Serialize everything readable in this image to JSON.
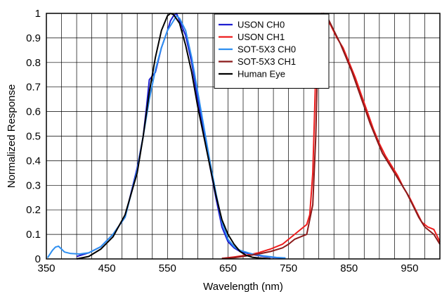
{
  "chart_data": {
    "type": "line",
    "xlabel": "Wavelength (nm)",
    "ylabel": "Normalized Response",
    "xlim": [
      350,
      1000
    ],
    "ylim": [
      0,
      1
    ],
    "x_ticks": [
      350,
      450,
      550,
      650,
      750,
      850,
      950
    ],
    "y_ticks": [
      0,
      0.1,
      0.2,
      0.3,
      0.4,
      0.5,
      0.6,
      0.7,
      0.8,
      0.9,
      1
    ],
    "grid": true,
    "legend_position": "top-center",
    "series": [
      {
        "name": "USON CH0",
        "color": "#1f1fd0",
        "points": [
          [
            400,
            0.01
          ],
          [
            420,
            0.025
          ],
          [
            440,
            0.05
          ],
          [
            460,
            0.1
          ],
          [
            480,
            0.17
          ],
          [
            500,
            0.37
          ],
          [
            510,
            0.5
          ],
          [
            515,
            0.61
          ],
          [
            520,
            0.73
          ],
          [
            530,
            0.76
          ],
          [
            540,
            0.86
          ],
          [
            550,
            0.93
          ],
          [
            555,
            0.97
          ],
          [
            560,
            0.99
          ],
          [
            565,
            1.0
          ],
          [
            570,
            0.97
          ],
          [
            580,
            0.91
          ],
          [
            590,
            0.8
          ],
          [
            600,
            0.65
          ],
          [
            610,
            0.52
          ],
          [
            620,
            0.38
          ],
          [
            630,
            0.25
          ],
          [
            640,
            0.13
          ],
          [
            650,
            0.07
          ],
          [
            660,
            0.045
          ],
          [
            670,
            0.03
          ],
          [
            690,
            0.018
          ],
          [
            710,
            0.01
          ],
          [
            730,
            0.005
          ],
          [
            745,
            0.003
          ]
        ]
      },
      {
        "name": "USON CH1",
        "color": "#ee1c1c",
        "points": [
          [
            640,
            0.002
          ],
          [
            660,
            0.008
          ],
          [
            680,
            0.015
          ],
          [
            700,
            0.025
          ],
          [
            720,
            0.04
          ],
          [
            740,
            0.06
          ],
          [
            750,
            0.08
          ],
          [
            760,
            0.1
          ],
          [
            770,
            0.12
          ],
          [
            780,
            0.14
          ],
          [
            785,
            0.18
          ],
          [
            790,
            0.35
          ],
          [
            793,
            0.6
          ],
          [
            796,
            0.85
          ],
          [
            800,
            0.99
          ],
          [
            805,
            1.0
          ],
          [
            810,
            0.99
          ],
          [
            820,
            0.95
          ],
          [
            830,
            0.9
          ],
          [
            840,
            0.86
          ],
          [
            850,
            0.8
          ],
          [
            860,
            0.74
          ],
          [
            870,
            0.67
          ],
          [
            880,
            0.6
          ],
          [
            890,
            0.53
          ],
          [
            900,
            0.47
          ],
          [
            910,
            0.42
          ],
          [
            920,
            0.38
          ],
          [
            930,
            0.34
          ],
          [
            940,
            0.29
          ],
          [
            950,
            0.25
          ],
          [
            960,
            0.2
          ],
          [
            970,
            0.15
          ],
          [
            980,
            0.13
          ],
          [
            990,
            0.12
          ],
          [
            1000,
            0.07
          ]
        ]
      },
      {
        "name": "SOT-5X3 CH0",
        "color": "#2e8ff0",
        "points": [
          [
            352,
            0.005
          ],
          [
            360,
            0.035
          ],
          [
            365,
            0.048
          ],
          [
            370,
            0.052
          ],
          [
            375,
            0.04
          ],
          [
            380,
            0.028
          ],
          [
            390,
            0.022
          ],
          [
            405,
            0.02
          ],
          [
            420,
            0.025
          ],
          [
            440,
            0.05
          ],
          [
            460,
            0.1
          ],
          [
            480,
            0.17
          ],
          [
            500,
            0.36
          ],
          [
            510,
            0.5
          ],
          [
            520,
            0.65
          ],
          [
            530,
            0.77
          ],
          [
            540,
            0.86
          ],
          [
            550,
            0.93
          ],
          [
            560,
            0.97
          ],
          [
            565,
            0.99
          ],
          [
            570,
            0.98
          ],
          [
            580,
            0.93
          ],
          [
            590,
            0.82
          ],
          [
            600,
            0.68
          ],
          [
            610,
            0.54
          ],
          [
            620,
            0.4
          ],
          [
            630,
            0.27
          ],
          [
            640,
            0.15
          ],
          [
            650,
            0.08
          ],
          [
            660,
            0.05
          ],
          [
            670,
            0.035
          ],
          [
            690,
            0.02
          ],
          [
            710,
            0.012
          ],
          [
            730,
            0.006
          ],
          [
            745,
            0.004
          ]
        ]
      },
      {
        "name": "SOT-5X3 CH1",
        "color": "#8b1a1a",
        "points": [
          [
            640,
            0.002
          ],
          [
            660,
            0.005
          ],
          [
            680,
            0.012
          ],
          [
            700,
            0.02
          ],
          [
            720,
            0.03
          ],
          [
            740,
            0.045
          ],
          [
            750,
            0.06
          ],
          [
            760,
            0.08
          ],
          [
            770,
            0.09
          ],
          [
            780,
            0.1
          ],
          [
            790,
            0.22
          ],
          [
            795,
            0.5
          ],
          [
            798,
            0.8
          ],
          [
            802,
            0.97
          ],
          [
            808,
            1.0
          ],
          [
            815,
            0.98
          ],
          [
            825,
            0.93
          ],
          [
            835,
            0.88
          ],
          [
            845,
            0.82
          ],
          [
            855,
            0.76
          ],
          [
            865,
            0.69
          ],
          [
            875,
            0.62
          ],
          [
            885,
            0.55
          ],
          [
            895,
            0.49
          ],
          [
            905,
            0.43
          ],
          [
            915,
            0.39
          ],
          [
            925,
            0.35
          ],
          [
            935,
            0.31
          ],
          [
            945,
            0.27
          ],
          [
            955,
            0.22
          ],
          [
            965,
            0.17
          ],
          [
            975,
            0.13
          ],
          [
            990,
            0.1
          ],
          [
            1000,
            0.06
          ]
        ]
      },
      {
        "name": "Human Eye",
        "color": "#000000",
        "points": [
          [
            400,
            0.0
          ],
          [
            420,
            0.01
          ],
          [
            440,
            0.04
          ],
          [
            460,
            0.09
          ],
          [
            480,
            0.18
          ],
          [
            500,
            0.35
          ],
          [
            510,
            0.5
          ],
          [
            520,
            0.68
          ],
          [
            530,
            0.82
          ],
          [
            540,
            0.93
          ],
          [
            550,
            0.99
          ],
          [
            555,
            1.0
          ],
          [
            560,
            0.995
          ],
          [
            570,
            0.96
          ],
          [
            580,
            0.87
          ],
          [
            590,
            0.76
          ],
          [
            600,
            0.62
          ],
          [
            610,
            0.5
          ],
          [
            620,
            0.38
          ],
          [
            630,
            0.26
          ],
          [
            640,
            0.16
          ],
          [
            650,
            0.1
          ],
          [
            660,
            0.06
          ],
          [
            670,
            0.03
          ],
          [
            680,
            0.015
          ],
          [
            690,
            0.007
          ],
          [
            700,
            0.004
          ],
          [
            720,
            0.001
          ]
        ]
      }
    ]
  }
}
